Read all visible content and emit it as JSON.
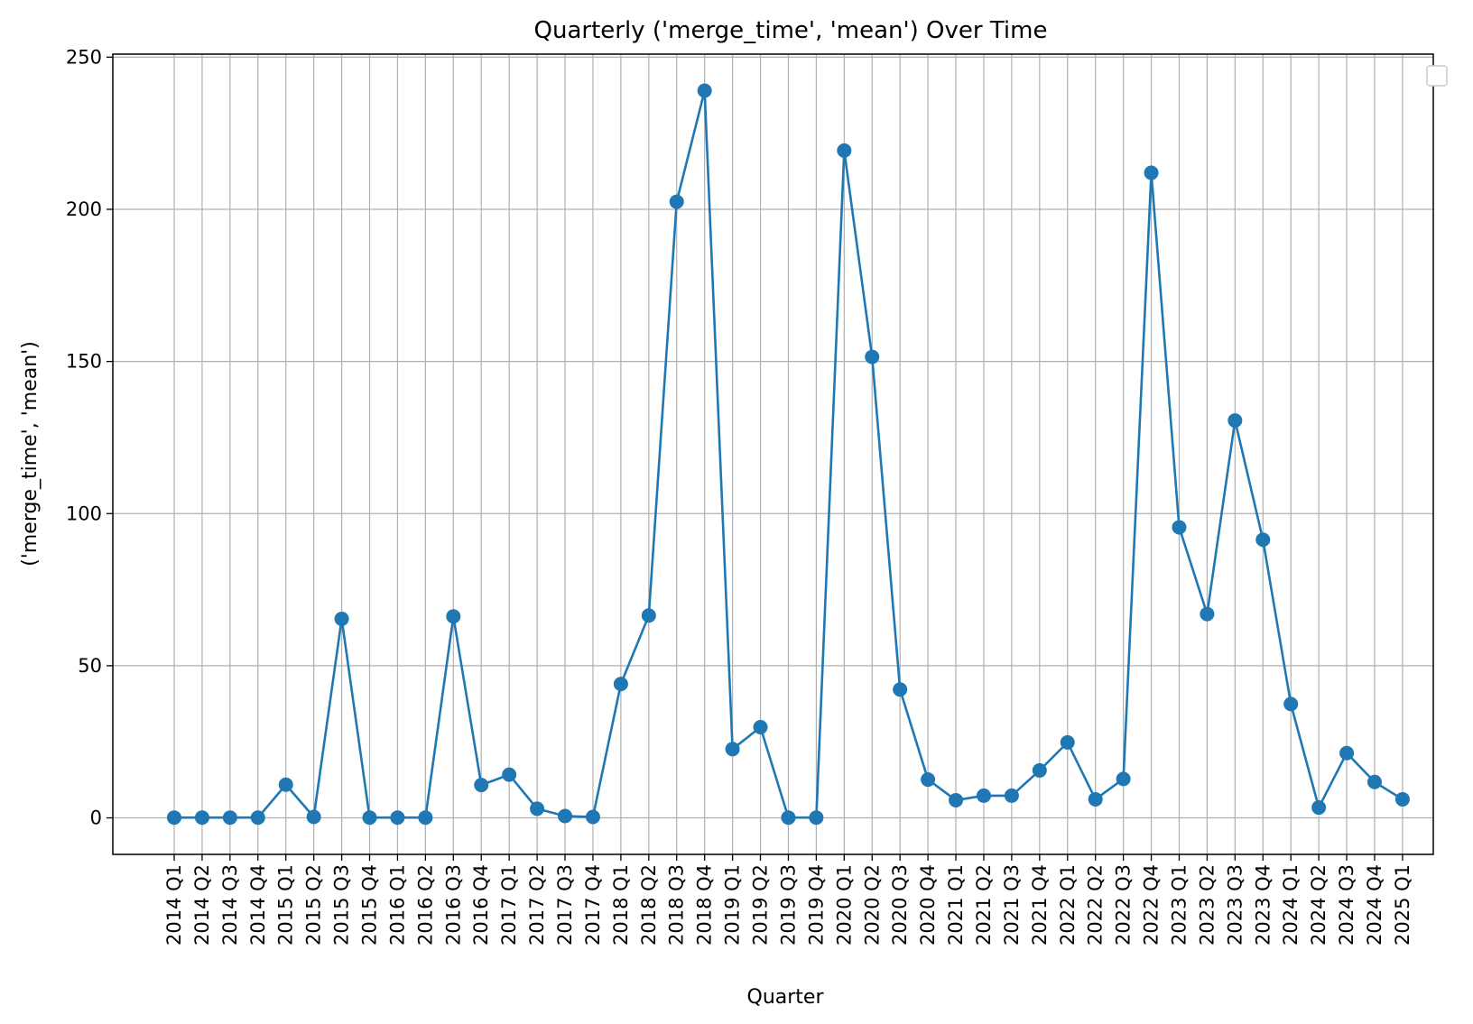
{
  "chart_data": {
    "type": "line",
    "title": "Quarterly ('merge_time', 'mean') Over Time",
    "xlabel": "Quarter",
    "ylabel": "('merge_time', 'mean')",
    "ylim": [
      -12,
      251
    ],
    "yticks": [
      0,
      50,
      100,
      150,
      200,
      250
    ],
    "grid": true,
    "legend": "top-right (empty)",
    "colors": {
      "line": "#1f77b4",
      "grid": "#b0b0b0",
      "axis": "#000000"
    },
    "categories": [
      "2014 Q1",
      "2014 Q2",
      "2014 Q3",
      "2014 Q4",
      "2015 Q1",
      "2015 Q2",
      "2015 Q3",
      "2015 Q4",
      "2016 Q1",
      "2016 Q2",
      "2016 Q3",
      "2016 Q4",
      "2017 Q1",
      "2017 Q2",
      "2017 Q3",
      "2017 Q4",
      "2018 Q1",
      "2018 Q2",
      "2018 Q3",
      "2018 Q4",
      "2019 Q1",
      "2019 Q2",
      "2019 Q3",
      "2019 Q4",
      "2020 Q1",
      "2020 Q2",
      "2020 Q3",
      "2020 Q4",
      "2021 Q1",
      "2021 Q2",
      "2021 Q3",
      "2021 Q4",
      "2022 Q1",
      "2022 Q2",
      "2022 Q3",
      "2022 Q4",
      "2023 Q1",
      "2023 Q2",
      "2023 Q3",
      "2023 Q4",
      "2024 Q1",
      "2024 Q2",
      "2024 Q3",
      "2024 Q4",
      "2025 Q1"
    ],
    "series": [
      {
        "values": [
          0.1,
          0.1,
          0.1,
          0.1,
          10.9,
          0.3,
          65.4,
          0.1,
          0.1,
          0.1,
          66.2,
          10.8,
          14.2,
          3.0,
          0.6,
          0.3,
          44.0,
          66.5,
          202.5,
          239.0,
          22.6,
          29.8,
          0.1,
          0.1,
          219.3,
          151.5,
          42.2,
          12.6,
          5.8,
          7.3,
          7.3,
          15.6,
          24.8,
          6.1,
          12.8,
          212.0,
          95.5,
          67.0,
          130.6,
          91.4,
          37.4,
          3.4,
          21.3,
          11.8,
          6.1
        ]
      }
    ]
  }
}
